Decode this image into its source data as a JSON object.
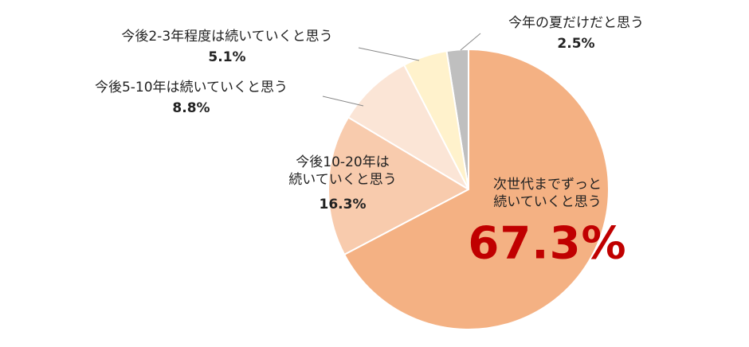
{
  "chart_data": {
    "type": "pie",
    "categories": [
      "次世代までずっと\n続いていくと思う",
      "今後10-20年は\n続いていくと思う",
      "今後5-10年は続いていくと思う",
      "今後2-3年程度は続いていくと思う",
      "今年の夏だけだと思う"
    ],
    "values": [
      67.3,
      16.3,
      8.8,
      5.1,
      2.5
    ],
    "value_labels": [
      "67.3%",
      "16.3%",
      "8.8%",
      "5.1%",
      "2.5%"
    ],
    "colors": [
      "#F4B183",
      "#F8CBAD",
      "#FBE5D6",
      "#FFF2CC",
      "#BFBFBF"
    ]
  }
}
